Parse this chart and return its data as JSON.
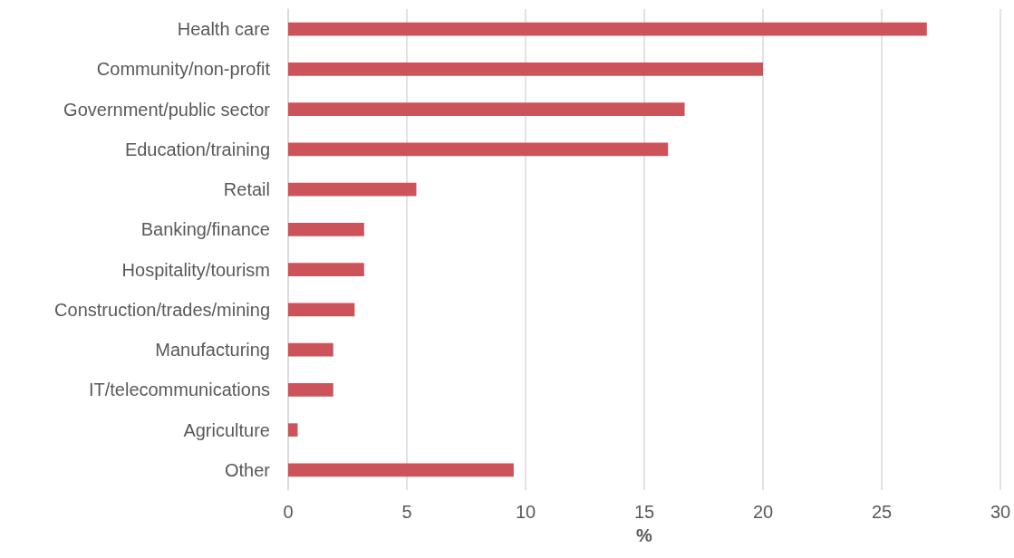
{
  "chart_data": {
    "type": "bar",
    "orientation": "horizontal",
    "xlabel": "%",
    "categories": [
      "Health care",
      "Community/non-profit",
      "Government/public sector",
      "Education/training",
      "Retail",
      "Banking/finance",
      "Hospitality/tourism",
      "Construction/trades/mining",
      "Manufacturing",
      "IT/telecommunications",
      "Agriculture",
      "Other"
    ],
    "values": [
      26.9,
      20.0,
      16.7,
      16.0,
      5.4,
      3.2,
      3.2,
      2.8,
      1.9,
      1.9,
      0.4,
      9.5
    ],
    "color": "#cd535b",
    "xlim": [
      0,
      30
    ],
    "xticks": [
      0,
      5,
      10,
      15,
      20,
      25,
      30
    ],
    "grid": "x"
  }
}
